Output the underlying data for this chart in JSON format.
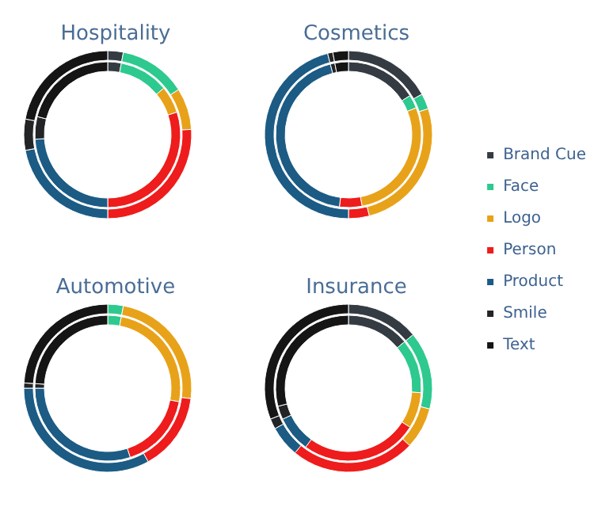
{
  "chart_data": [
    {
      "type": "donut",
      "title": "Hospitality",
      "colors": [
        "#353b42",
        "#2ec98f",
        "#e8a21a",
        "#ee1c1c",
        "#1c5b84",
        "#222426",
        "#151515"
      ],
      "series": [
        {
          "values": [
            3,
            11,
            6,
            30,
            24,
            5,
            21
          ]
        },
        {
          "values": [
            3,
            13,
            8,
            26,
            22,
            6,
            22
          ]
        }
      ]
    },
    {
      "type": "donut",
      "title": "Cosmetics",
      "categories": [
        "Brand Cue",
        "Face",
        "Logo",
        "Person",
        "Product",
        "Smile",
        "Text"
      ],
      "colors": [
        "#353b42",
        "#2ec98f",
        "#e8a21a",
        "#ee1c1c",
        "#1c5b84",
        "#222426",
        "#151515"
      ],
      "legend": "right",
      "series": [
        {
          "values": [
            16,
            3,
            28,
            5,
            44,
            1,
            3
          ]
        },
        {
          "values": [
            17,
            3,
            26,
            4,
            46,
            1,
            3
          ]
        }
      ]
    },
    {
      "type": "donut",
      "title": "Automotive",
      "colors": [
        "#353b42",
        "#2ec98f",
        "#e8a21a",
        "#ee1c1c",
        "#1c5b84",
        "#222426",
        "#151515"
      ],
      "series": [
        {
          "values": [
            0,
            3,
            25,
            17,
            30,
            1,
            24
          ]
        },
        {
          "values": [
            0,
            3,
            24,
            15,
            33,
            1,
            24
          ]
        }
      ]
    },
    {
      "type": "donut",
      "title": "Insurance",
      "colors": [
        "#353b42",
        "#2ec98f",
        "#e8a21a",
        "#ee1c1c",
        "#1c5b84",
        "#222426",
        "#151515"
      ],
      "series": [
        {
          "values": [
            14,
            12,
            8,
            26,
            8,
            3,
            29
          ]
        },
        {
          "values": [
            14,
            15,
            8,
            24,
            6,
            2,
            31
          ]
        }
      ]
    }
  ]
}
